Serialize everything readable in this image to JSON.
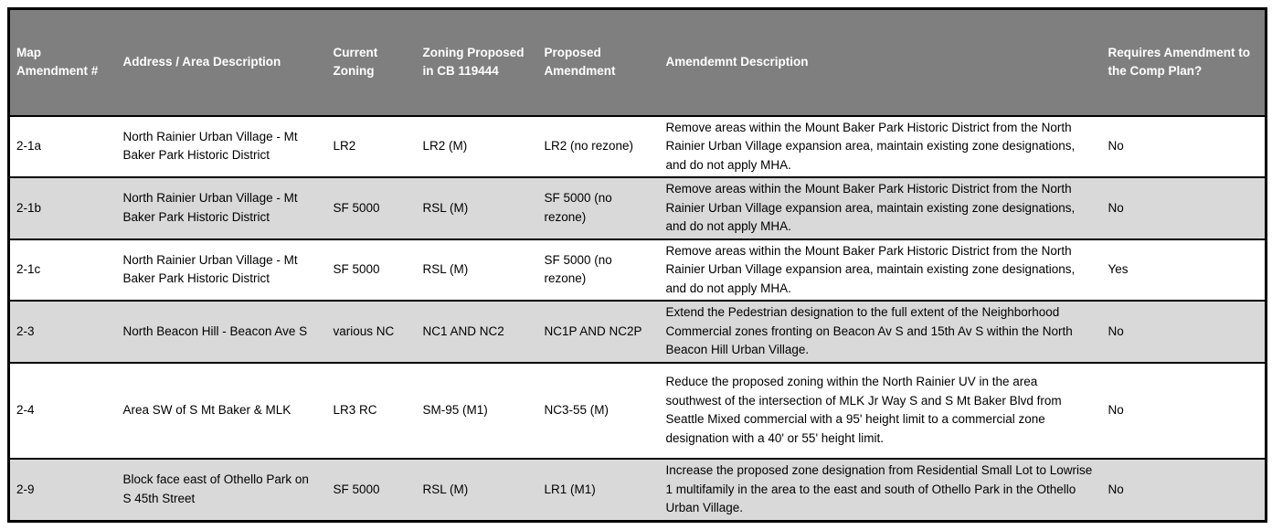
{
  "colors": {
    "header_bg": "#7f7f7f",
    "header_text": "#ffffff",
    "alt_row_bg": "#d9d9d9",
    "border": "#000000"
  },
  "table": {
    "columns": [
      {
        "key": "id",
        "label": "Map Amendment #"
      },
      {
        "key": "address",
        "label": "Address / Area Description"
      },
      {
        "key": "current_zoning",
        "label": "Current Zoning"
      },
      {
        "key": "zoning_proposed_cb",
        "label": "Zoning Proposed in CB 119444"
      },
      {
        "key": "proposed_amendment",
        "label": "Proposed Amendment"
      },
      {
        "key": "description",
        "label": "Amendemnt Description"
      },
      {
        "key": "requires_comp_plan",
        "label": "Requires Amendment to the Comp Plan?"
      }
    ],
    "rows": [
      {
        "id": "2-1a",
        "address": "North Rainier Urban Village - Mt Baker Park Historic District",
        "current_zoning": "LR2",
        "zoning_proposed_cb": "LR2 (M)",
        "proposed_amendment": "LR2 (no rezone)",
        "description": "Remove areas within the Mount Baker Park Historic District from the North Rainier Urban Village expansion area, maintain existing zone designations, and do not apply MHA.",
        "requires_comp_plan": "No"
      },
      {
        "id": "2-1b",
        "address": "North Rainier Urban Village - Mt Baker Park Historic District",
        "current_zoning": "SF 5000",
        "zoning_proposed_cb": "RSL (M)",
        "proposed_amendment": "SF 5000 (no rezone)",
        "description": "Remove areas within the Mount Baker Park Historic District from the North Rainier Urban Village expansion area, maintain existing zone designations, and do not apply MHA.",
        "requires_comp_plan": "No"
      },
      {
        "id": "2-1c",
        "address": "North Rainier Urban Village - Mt Baker Park Historic District",
        "current_zoning": "SF 5000",
        "zoning_proposed_cb": "RSL (M)",
        "proposed_amendment": "SF 5000 (no rezone)",
        "description": "Remove areas within the Mount Baker Park Historic District from the North Rainier Urban Village expansion area, maintain existing zone designations, and do not apply MHA.",
        "requires_comp_plan": "Yes"
      },
      {
        "id": "2-3",
        "address": "North Beacon Hill - Beacon Ave S",
        "current_zoning": "various NC",
        "zoning_proposed_cb": "NC1 AND NC2",
        "proposed_amendment": "NC1P AND NC2P",
        "description": "Extend the Pedestrian designation to the full extent of the Neighborhood Commercial zones fronting on Beacon Av S and 15th Av S within the North Beacon Hill Urban Village.",
        "requires_comp_plan": "No"
      },
      {
        "id": "2-4",
        "address": "Area SW of S Mt Baker & MLK",
        "current_zoning": "LR3 RC",
        "zoning_proposed_cb": "SM-95 (M1)",
        "proposed_amendment": "NC3-55 (M)",
        "description": "Reduce the proposed zoning within the North Rainier UV in the area southwest of the intersection of MLK Jr Way S and S Mt Baker Blvd from Seattle Mixed commercial with a 95' height limit to a commercial zone designation with a 40' or 55' height limit.",
        "requires_comp_plan": "No"
      },
      {
        "id": "2-9",
        "address": "Block face east of Othello Park on S 45th Street",
        "current_zoning": "SF 5000",
        "zoning_proposed_cb": "RSL (M)",
        "proposed_amendment": "LR1 (M1)",
        "description": "Increase the proposed zone designation from Residential Small Lot to Lowrise 1 multifamily in the area to the east and south of Othello Park  in the Othello Urban Village.",
        "requires_comp_plan": "No"
      }
    ]
  }
}
